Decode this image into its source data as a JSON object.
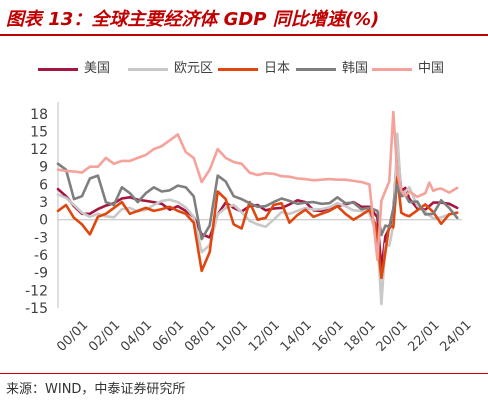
{
  "header": {
    "title": "图表 13：全球主要经济体 GDP 同比增速(%)"
  },
  "footer": {
    "source": "来源：WIND，中泰证券研究所"
  },
  "chart_data": {
    "type": "line",
    "title": "图表 13：全球主要经济体 GDP 同比增速(%)",
    "xlabel": "",
    "ylabel": "",
    "x_tick_labels": [
      "00/01",
      "02/01",
      "04/01",
      "06/01",
      "08/01",
      "10/01",
      "12/01",
      "14/01",
      "16/01",
      "18/01",
      "20/01",
      "22/01",
      "24/01"
    ],
    "y_ticks": [
      18,
      15,
      12,
      9,
      6,
      3,
      0,
      -3,
      -6,
      -9,
      -12,
      -15
    ],
    "ylim": [
      -15,
      20
    ],
    "xlim": [
      2000.0,
      2025.3
    ],
    "grid": false,
    "legend_position": "top",
    "series": [
      {
        "name": "美国",
        "color": "#a5163f",
        "points": [
          [
            2000.0,
            5.2
          ],
          [
            2000.5,
            4.0
          ],
          [
            2001.0,
            2.3
          ],
          [
            2001.5,
            1.0
          ],
          [
            2002.0,
            1.0
          ],
          [
            2002.5,
            1.8
          ],
          [
            2003.0,
            2.4
          ],
          [
            2003.5,
            2.8
          ],
          [
            2004.0,
            3.6
          ],
          [
            2004.5,
            3.8
          ],
          [
            2005.0,
            3.4
          ],
          [
            2005.5,
            3.2
          ],
          [
            2006.0,
            3.0
          ],
          [
            2006.5,
            2.7
          ],
          [
            2007.0,
            1.7
          ],
          [
            2007.5,
            2.3
          ],
          [
            2008.0,
            1.5
          ],
          [
            2008.5,
            0.5
          ],
          [
            2009.0,
            -2.5
          ],
          [
            2009.5,
            -3.0
          ],
          [
            2010.0,
            0.9
          ],
          [
            2010.5,
            2.9
          ],
          [
            2011.0,
            2.0
          ],
          [
            2011.5,
            1.4
          ],
          [
            2012.0,
            2.3
          ],
          [
            2012.5,
            2.5
          ],
          [
            2013.0,
            1.6
          ],
          [
            2013.5,
            1.9
          ],
          [
            2014.0,
            2.0
          ],
          [
            2014.5,
            2.6
          ],
          [
            2015.0,
            3.3
          ],
          [
            2015.5,
            3.0
          ],
          [
            2016.0,
            1.6
          ],
          [
            2016.5,
            1.5
          ],
          [
            2017.0,
            2.0
          ],
          [
            2017.5,
            2.3
          ],
          [
            2018.0,
            2.6
          ],
          [
            2018.5,
            3.0
          ],
          [
            2019.0,
            2.2
          ],
          [
            2019.5,
            2.2
          ],
          [
            2020.0,
            0.4
          ],
          [
            2020.25,
            -8.4
          ],
          [
            2020.5,
            -2.8
          ],
          [
            2020.75,
            -1.5
          ],
          [
            2021.0,
            1.2
          ],
          [
            2021.25,
            12.2
          ],
          [
            2021.5,
            4.9
          ],
          [
            2021.75,
            5.4
          ],
          [
            2022.0,
            3.6
          ],
          [
            2022.5,
            1.9
          ],
          [
            2023.0,
            1.7
          ],
          [
            2023.5,
            2.9
          ],
          [
            2024.0,
            2.9
          ],
          [
            2024.5,
            2.7
          ],
          [
            2025.0,
            2.0
          ]
        ]
      },
      {
        "name": "欧元区",
        "color": "#c8c8c8",
        "points": [
          [
            2000.0,
            4.3
          ],
          [
            2000.5,
            3.7
          ],
          [
            2001.0,
            2.5
          ],
          [
            2001.5,
            1.2
          ],
          [
            2002.0,
            0.5
          ],
          [
            2002.5,
            1.0
          ],
          [
            2003.0,
            0.6
          ],
          [
            2003.5,
            0.4
          ],
          [
            2004.0,
            1.8
          ],
          [
            2004.5,
            2.0
          ],
          [
            2005.0,
            1.4
          ],
          [
            2005.5,
            1.7
          ],
          [
            2006.0,
            2.5
          ],
          [
            2006.5,
            3.2
          ],
          [
            2007.0,
            3.4
          ],
          [
            2007.5,
            3.0
          ],
          [
            2008.0,
            2.1
          ],
          [
            2008.5,
            0.5
          ],
          [
            2009.0,
            -5.5
          ],
          [
            2009.5,
            -4.3
          ],
          [
            2010.0,
            0.9
          ],
          [
            2010.5,
            2.0
          ],
          [
            2011.0,
            2.5
          ],
          [
            2011.5,
            1.3
          ],
          [
            2012.0,
            -0.2
          ],
          [
            2012.5,
            -0.8
          ],
          [
            2013.0,
            -1.2
          ],
          [
            2013.5,
            0.0
          ],
          [
            2014.0,
            1.3
          ],
          [
            2014.5,
            1.0
          ],
          [
            2015.0,
            1.5
          ],
          [
            2015.5,
            2.0
          ],
          [
            2016.0,
            1.7
          ],
          [
            2016.5,
            1.8
          ],
          [
            2017.0,
            2.1
          ],
          [
            2017.5,
            2.8
          ],
          [
            2018.0,
            2.3
          ],
          [
            2018.5,
            1.6
          ],
          [
            2019.0,
            1.5
          ],
          [
            2019.5,
            1.2
          ],
          [
            2020.0,
            -3.0
          ],
          [
            2020.25,
            -14.3
          ],
          [
            2020.5,
            -4.1
          ],
          [
            2020.75,
            -4.4
          ],
          [
            2021.0,
            -1.0
          ],
          [
            2021.25,
            14.6
          ],
          [
            2021.5,
            4.0
          ],
          [
            2021.75,
            4.8
          ],
          [
            2022.0,
            5.5
          ],
          [
            2022.5,
            2.4
          ],
          [
            2023.0,
            1.3
          ],
          [
            2023.5,
            0.2
          ],
          [
            2024.0,
            0.4
          ],
          [
            2024.5,
            0.9
          ],
          [
            2025.0,
            1.2
          ]
        ]
      },
      {
        "name": "日本",
        "color": "#e0470f",
        "points": [
          [
            2000.0,
            1.5
          ],
          [
            2000.5,
            2.5
          ],
          [
            2001.0,
            0.3
          ],
          [
            2001.5,
            -0.8
          ],
          [
            2002.0,
            -2.5
          ],
          [
            2002.5,
            0.5
          ],
          [
            2003.0,
            1.0
          ],
          [
            2003.5,
            2.0
          ],
          [
            2004.0,
            3.0
          ],
          [
            2004.5,
            1.0
          ],
          [
            2005.0,
            1.5
          ],
          [
            2005.5,
            2.0
          ],
          [
            2006.0,
            1.5
          ],
          [
            2006.5,
            1.8
          ],
          [
            2007.0,
            2.2
          ],
          [
            2007.5,
            1.5
          ],
          [
            2008.0,
            1.0
          ],
          [
            2008.5,
            -0.5
          ],
          [
            2009.0,
            -8.7
          ],
          [
            2009.5,
            -5.5
          ],
          [
            2010.0,
            4.8
          ],
          [
            2010.5,
            3.5
          ],
          [
            2011.0,
            -0.8
          ],
          [
            2011.5,
            -1.5
          ],
          [
            2012.0,
            3.0
          ],
          [
            2012.5,
            0.0
          ],
          [
            2013.0,
            0.3
          ],
          [
            2013.5,
            2.5
          ],
          [
            2014.0,
            2.8
          ],
          [
            2014.5,
            -0.5
          ],
          [
            2015.0,
            0.8
          ],
          [
            2015.5,
            1.7
          ],
          [
            2016.0,
            0.5
          ],
          [
            2016.5,
            1.0
          ],
          [
            2017.0,
            1.5
          ],
          [
            2017.5,
            2.3
          ],
          [
            2018.0,
            1.0
          ],
          [
            2018.5,
            0.0
          ],
          [
            2019.0,
            0.8
          ],
          [
            2019.5,
            1.7
          ],
          [
            2019.9,
            -1.0
          ],
          [
            2020.25,
            -9.9
          ],
          [
            2020.5,
            -5.5
          ],
          [
            2020.75,
            -0.9
          ],
          [
            2021.0,
            -1.3
          ],
          [
            2021.25,
            7.3
          ],
          [
            2021.5,
            1.2
          ],
          [
            2021.75,
            0.8
          ],
          [
            2022.0,
            0.6
          ],
          [
            2022.5,
            1.6
          ],
          [
            2023.0,
            2.6
          ],
          [
            2023.5,
            1.3
          ],
          [
            2024.0,
            -0.7
          ],
          [
            2024.5,
            0.9
          ],
          [
            2025.0,
            1.2
          ]
        ]
      },
      {
        "name": "韩国",
        "color": "#7f7f7f",
        "points": [
          [
            2000.0,
            9.5
          ],
          [
            2000.5,
            8.5
          ],
          [
            2001.0,
            3.5
          ],
          [
            2001.5,
            4.0
          ],
          [
            2002.0,
            7.0
          ],
          [
            2002.5,
            7.5
          ],
          [
            2003.0,
            3.0
          ],
          [
            2003.5,
            2.5
          ],
          [
            2004.0,
            5.5
          ],
          [
            2004.5,
            4.5
          ],
          [
            2005.0,
            3.0
          ],
          [
            2005.5,
            4.5
          ],
          [
            2006.0,
            5.5
          ],
          [
            2006.5,
            4.8
          ],
          [
            2007.0,
            5.0
          ],
          [
            2007.5,
            5.8
          ],
          [
            2008.0,
            5.5
          ],
          [
            2008.5,
            4.0
          ],
          [
            2009.0,
            -3.3
          ],
          [
            2009.5,
            -1.0
          ],
          [
            2010.0,
            7.5
          ],
          [
            2010.5,
            6.5
          ],
          [
            2011.0,
            4.0
          ],
          [
            2011.5,
            3.5
          ],
          [
            2012.0,
            2.8
          ],
          [
            2012.5,
            2.2
          ],
          [
            2013.0,
            2.3
          ],
          [
            2013.5,
            3.0
          ],
          [
            2014.0,
            3.6
          ],
          [
            2014.5,
            3.2
          ],
          [
            2015.0,
            2.7
          ],
          [
            2015.5,
            2.9
          ],
          [
            2016.0,
            3.0
          ],
          [
            2016.5,
            2.7
          ],
          [
            2017.0,
            2.8
          ],
          [
            2017.5,
            3.8
          ],
          [
            2018.0,
            2.8
          ],
          [
            2018.5,
            2.9
          ],
          [
            2019.0,
            1.8
          ],
          [
            2019.5,
            2.0
          ],
          [
            2020.0,
            1.5
          ],
          [
            2020.25,
            -2.6
          ],
          [
            2020.5,
            -1.0
          ],
          [
            2020.75,
            -1.2
          ],
          [
            2021.0,
            1.9
          ],
          [
            2021.25,
            6.0
          ],
          [
            2021.5,
            4.0
          ],
          [
            2021.75,
            4.2
          ],
          [
            2022.0,
            3.0
          ],
          [
            2022.5,
            3.1
          ],
          [
            2023.0,
            0.9
          ],
          [
            2023.5,
            1.0
          ],
          [
            2024.0,
            3.3
          ],
          [
            2024.5,
            2.0
          ],
          [
            2025.0,
            0.3
          ]
        ]
      },
      {
        "name": "中国",
        "color": "#f4a29a",
        "points": [
          [
            2000.0,
            8.5
          ],
          [
            2000.5,
            8.3
          ],
          [
            2001.0,
            8.2
          ],
          [
            2001.5,
            8.0
          ],
          [
            2002.0,
            9.0
          ],
          [
            2002.5,
            9.0
          ],
          [
            2003.0,
            10.5
          ],
          [
            2003.5,
            9.5
          ],
          [
            2004.0,
            10.0
          ],
          [
            2004.5,
            10.0
          ],
          [
            2005.0,
            10.5
          ],
          [
            2005.5,
            11.0
          ],
          [
            2006.0,
            12.0
          ],
          [
            2006.5,
            12.5
          ],
          [
            2007.0,
            13.5
          ],
          [
            2007.5,
            14.5
          ],
          [
            2008.0,
            11.5
          ],
          [
            2008.5,
            10.5
          ],
          [
            2009.0,
            6.4
          ],
          [
            2009.5,
            8.5
          ],
          [
            2010.0,
            12.0
          ],
          [
            2010.5,
            10.5
          ],
          [
            2011.0,
            9.8
          ],
          [
            2011.5,
            9.5
          ],
          [
            2012.0,
            8.0
          ],
          [
            2012.5,
            7.6
          ],
          [
            2013.0,
            7.9
          ],
          [
            2013.5,
            7.8
          ],
          [
            2014.0,
            7.4
          ],
          [
            2014.5,
            7.3
          ],
          [
            2015.0,
            7.0
          ],
          [
            2015.5,
            6.9
          ],
          [
            2016.0,
            6.7
          ],
          [
            2016.5,
            6.8
          ],
          [
            2017.0,
            6.9
          ],
          [
            2017.5,
            6.8
          ],
          [
            2018.0,
            6.8
          ],
          [
            2018.5,
            6.6
          ],
          [
            2019.0,
            6.4
          ],
          [
            2019.5,
            6.0
          ],
          [
            2020.0,
            -6.8
          ],
          [
            2020.25,
            3.2
          ],
          [
            2020.5,
            4.9
          ],
          [
            2020.75,
            6.5
          ],
          [
            2021.0,
            18.3
          ],
          [
            2021.25,
            7.9
          ],
          [
            2021.5,
            4.9
          ],
          [
            2021.75,
            4.0
          ],
          [
            2022.0,
            4.8
          ],
          [
            2022.5,
            3.9
          ],
          [
            2023.0,
            4.5
          ],
          [
            2023.25,
            6.3
          ],
          [
            2023.5,
            4.9
          ],
          [
            2023.75,
            5.2
          ],
          [
            2024.0,
            5.3
          ],
          [
            2024.5,
            4.6
          ],
          [
            2025.0,
            5.4
          ]
        ]
      }
    ]
  }
}
